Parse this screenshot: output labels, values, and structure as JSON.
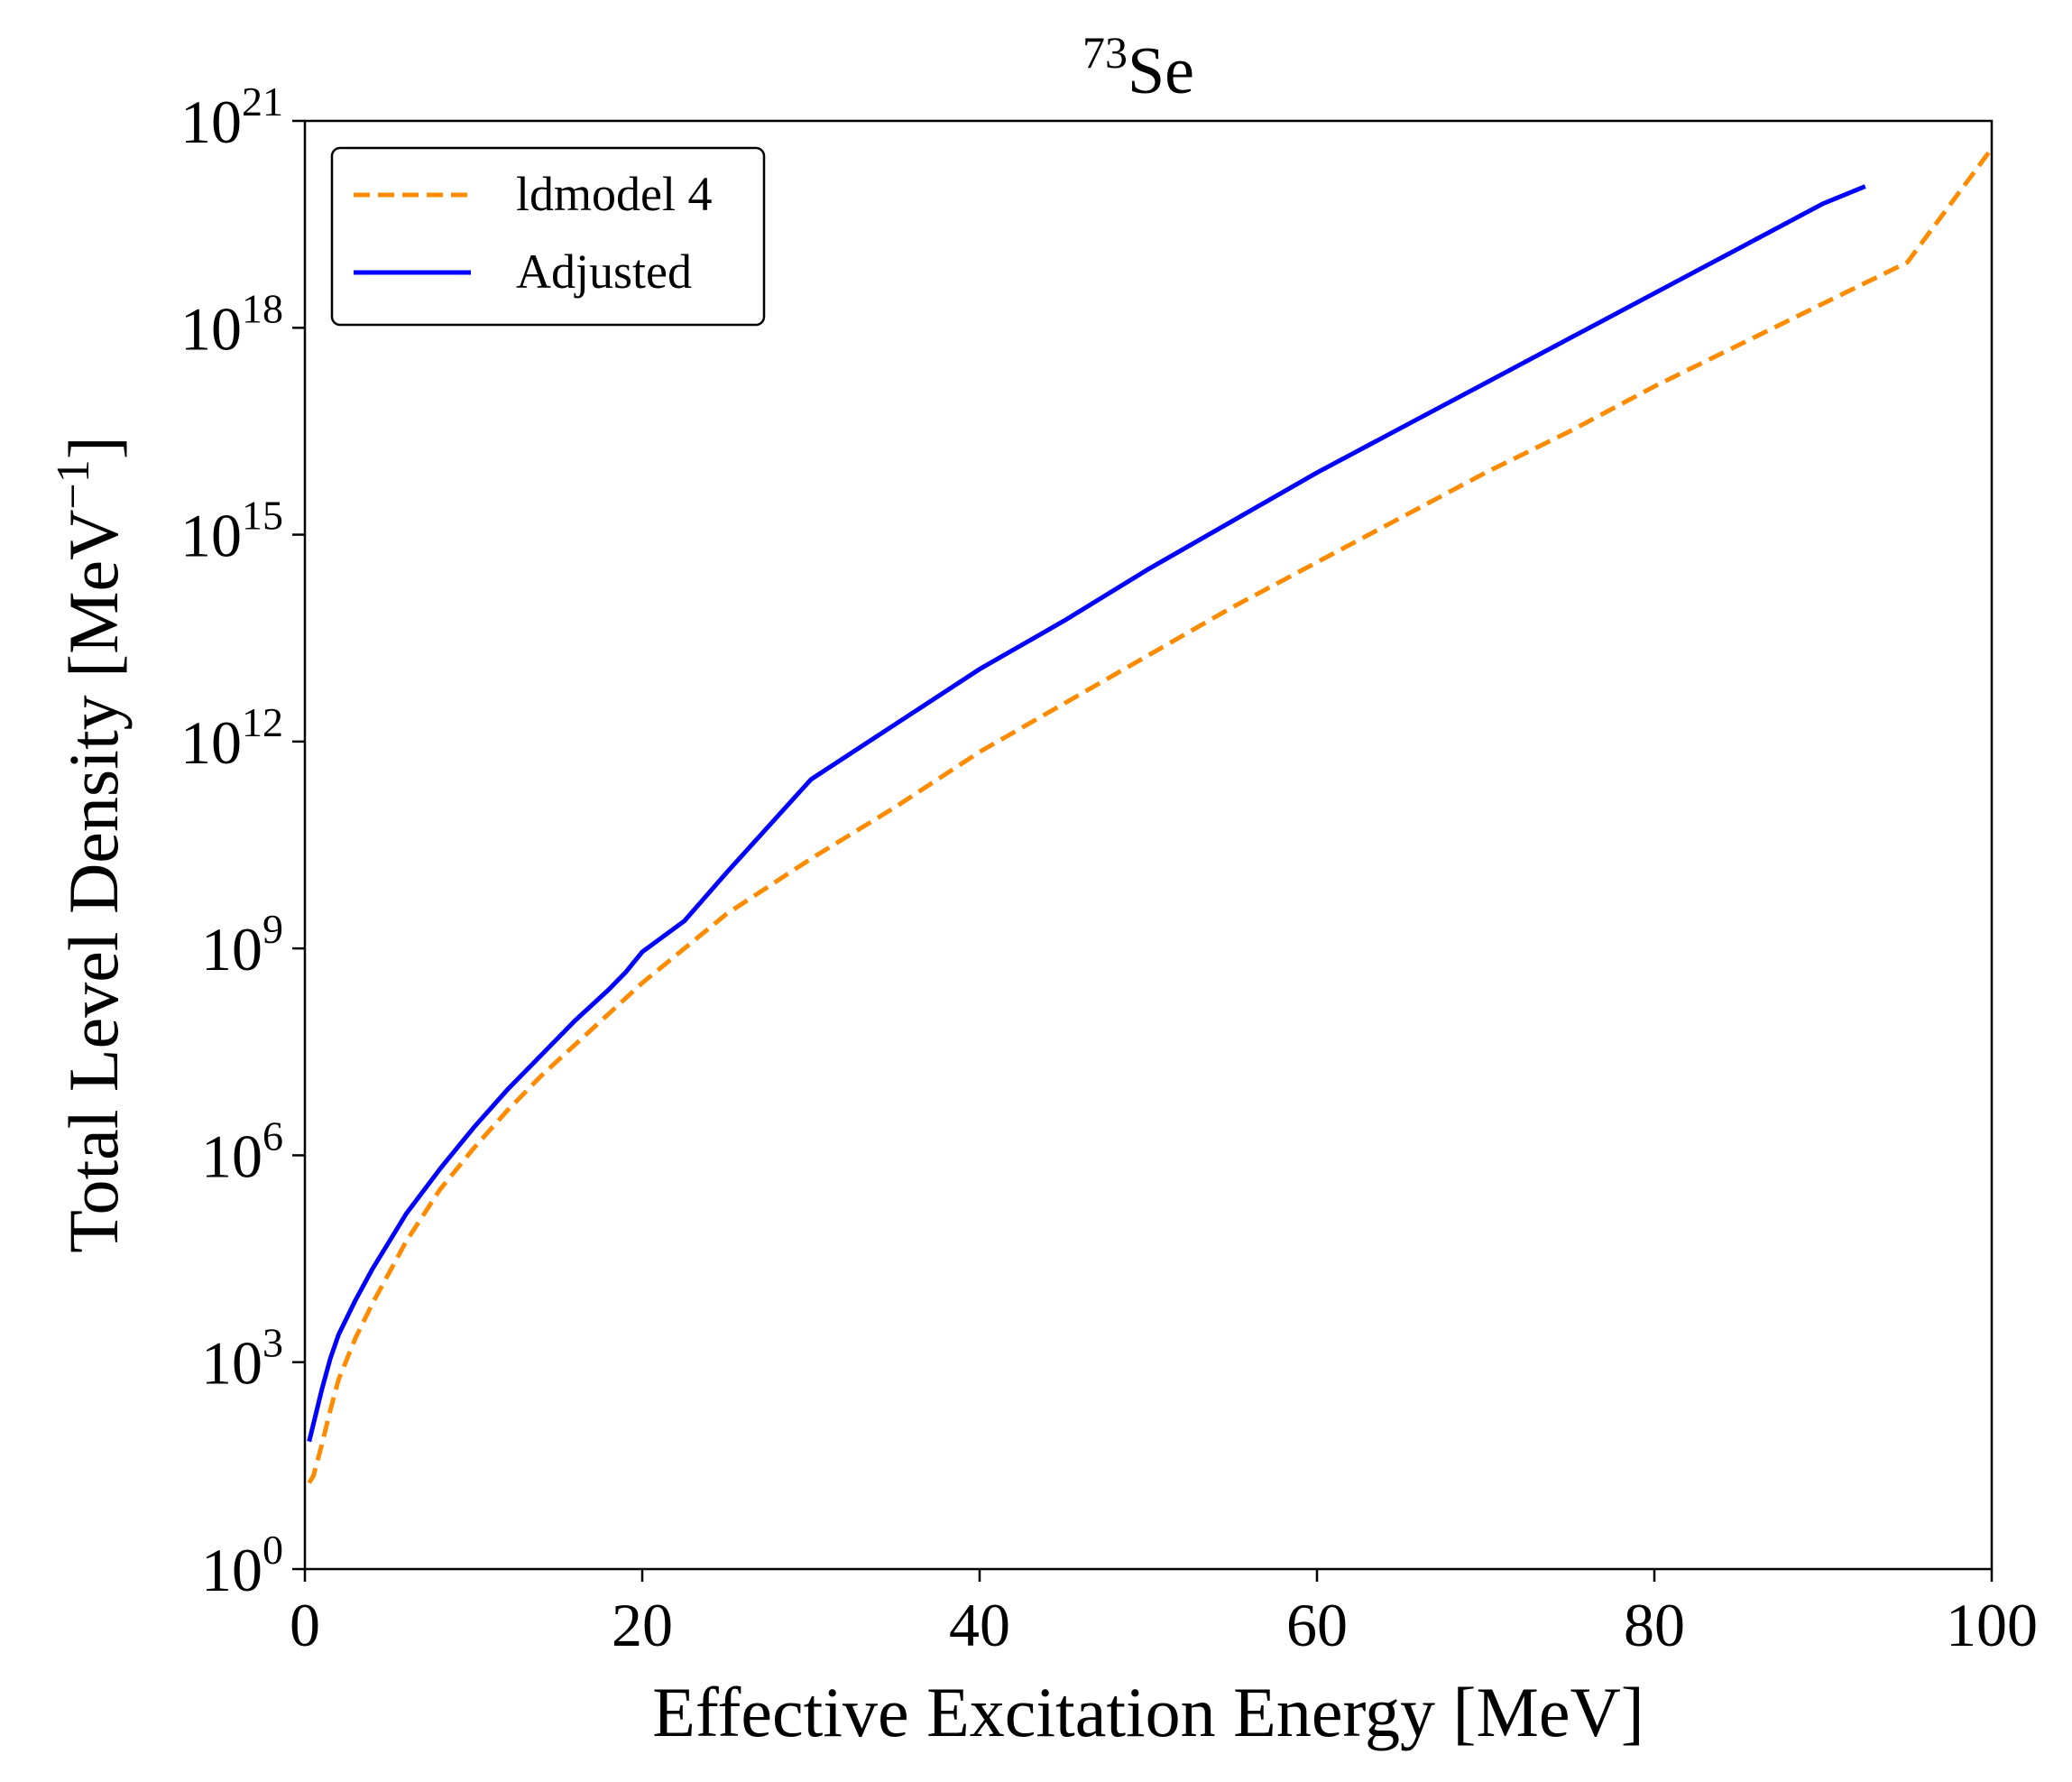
{
  "chart_data": {
    "type": "line",
    "title_superscript": "73",
    "title_main": "Se",
    "xlabel": "Effective Excitation Energy [MeV]",
    "ylabel_main": "Total Level Density [MeV",
    "ylabel_superscript": "−1",
    "ylabel_close": "]",
    "xlim": [
      0,
      100
    ],
    "ylim_log10": [
      0,
      21
    ],
    "yscale": "log",
    "x_ticks": [
      0,
      20,
      40,
      60,
      80,
      100
    ],
    "x_tick_labels": [
      "0",
      "20",
      "40",
      "60",
      "80",
      "100"
    ],
    "y_tick_exponents": [
      0,
      3,
      6,
      9,
      12,
      15,
      18,
      21
    ],
    "y_tick_base": "10",
    "y_tick_superscripts": [
      "0",
      "3",
      "6",
      "9",
      "12",
      "15",
      "18",
      "21"
    ],
    "legend_position": "top-left",
    "series": [
      {
        "name": "ldmodel 4",
        "style": "dashed",
        "color": "#ff8c00",
        "x": [
          0.25,
          0.5,
          1,
          1.5,
          2,
          3,
          4,
          5,
          6,
          8,
          10,
          12,
          14,
          16,
          18,
          20,
          22,
          25,
          30,
          35,
          40,
          45,
          50,
          55,
          60,
          65,
          70,
          75,
          80,
          85,
          90,
          95,
          100
        ],
        "log10_y": [
          1.25,
          1.35,
          1.8,
          2.3,
          2.75,
          3.35,
          3.85,
          4.3,
          4.75,
          5.5,
          6.1,
          6.65,
          7.15,
          7.6,
          8.05,
          8.5,
          8.9,
          9.5,
          10.3,
          11.05,
          11.85,
          12.55,
          13.25,
          13.95,
          14.6,
          15.25,
          15.9,
          16.5,
          17.15,
          17.75,
          18.35,
          18.95,
          20.6
        ]
      },
      {
        "name": "Adjusted",
        "style": "solid",
        "color": "#0000ff",
        "x": [
          0.25,
          0.5,
          1,
          1.5,
          2,
          3,
          4,
          5,
          6,
          8,
          10,
          12,
          14,
          16,
          18,
          19,
          20,
          22.5,
          25,
          30,
          35,
          40,
          45,
          50,
          55,
          60,
          65,
          70,
          75,
          80,
          85,
          90,
          92.5
        ],
        "log10_y": [
          1.85,
          2.1,
          2.6,
          3.05,
          3.4,
          3.9,
          4.35,
          4.75,
          5.15,
          5.8,
          6.4,
          6.95,
          7.45,
          7.95,
          8.4,
          8.65,
          8.95,
          9.4,
          10.1,
          11.45,
          12.25,
          13.05,
          13.75,
          14.5,
          15.2,
          15.9,
          16.55,
          17.2,
          17.85,
          18.5,
          19.15,
          19.8,
          20.05
        ]
      }
    ]
  }
}
